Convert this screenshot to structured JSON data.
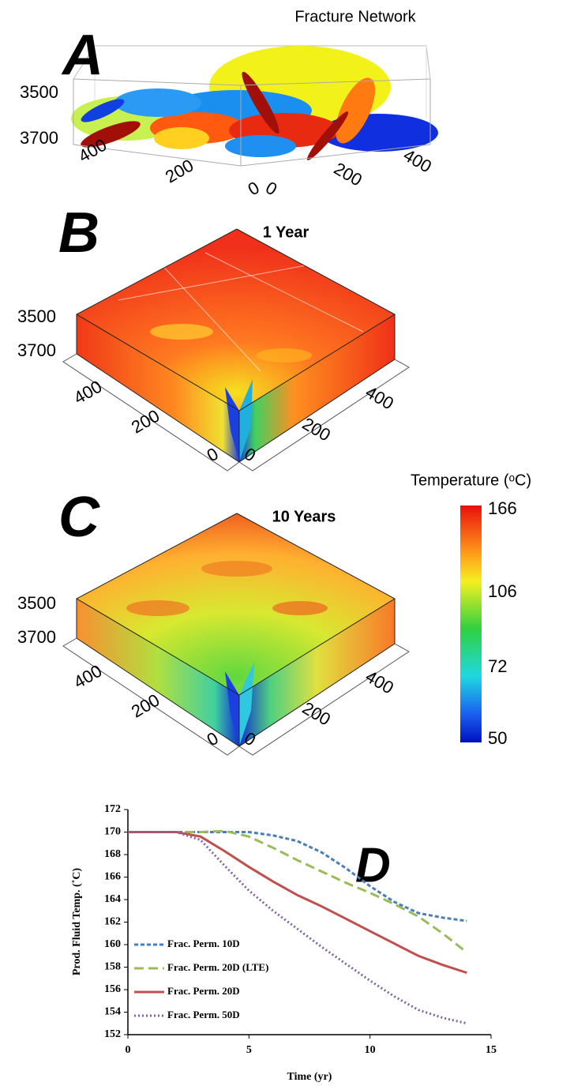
{
  "panels": [
    {
      "label": "A",
      "title": "Fracture Network",
      "depth_ticks": [
        3500,
        3700
      ],
      "x_ticks": [
        400,
        200,
        0
      ],
      "y_ticks": [
        0,
        200,
        400
      ]
    },
    {
      "label": "B",
      "title": "1 Year",
      "depth_ticks": [
        3500,
        3700
      ],
      "x_ticks": [
        400,
        200,
        0
      ],
      "y_ticks": [
        0,
        200,
        400
      ]
    },
    {
      "label": "C",
      "title": "10 Years",
      "depth_ticks": [
        3500,
        3700
      ],
      "x_ticks": [
        400,
        200,
        0
      ],
      "y_ticks": [
        0,
        200,
        400
      ]
    }
  ],
  "colorbar": {
    "title": "Temperature (ᵒC)",
    "ticks": [
      166,
      106,
      72,
      50
    ]
  },
  "chart_data": {
    "type": "line",
    "annotation": "D",
    "xlabel": "Time (yr)",
    "ylabel": "Prod. Fluid Temp. (˚C)",
    "x": [
      0,
      1,
      2,
      3,
      4,
      5,
      6,
      7,
      8,
      9,
      10,
      11,
      12,
      13,
      14
    ],
    "series": [
      {
        "name": "Frac. Perm. 10D",
        "color": "#4a7ebb",
        "dash": "5,3",
        "values": [
          170,
          170,
          170,
          170,
          170,
          170,
          169.7,
          169.2,
          168.2,
          166.8,
          165.2,
          163.8,
          162.8,
          162.4,
          162.1
        ]
      },
      {
        "name": "Frac. Perm. 20D (LTE)",
        "color": "#9bbb59",
        "dash": "12,6",
        "values": [
          170,
          170,
          170,
          170,
          170.1,
          169.6,
          168.6,
          167.5,
          166.5,
          165.5,
          164.6,
          163.6,
          162.5,
          161,
          159.3
        ]
      },
      {
        "name": "Frac. Perm. 20D",
        "color": "#c0504d",
        "dash": "none",
        "values": [
          170,
          170,
          170,
          169.6,
          168.3,
          166.9,
          165.6,
          164.4,
          163.4,
          162.3,
          161.2,
          160.1,
          159,
          158.2,
          157.5
        ]
      },
      {
        "name": "Frac. Perm. 50D",
        "color": "#8064a2",
        "dash": "2,3",
        "values": [
          170,
          170,
          170,
          169.3,
          167,
          164.8,
          163,
          161.4,
          159.8,
          158.3,
          156.8,
          155.4,
          154.2,
          153.5,
          153
        ]
      }
    ],
    "xlim": [
      0,
      15
    ],
    "xticks": [
      0,
      5,
      10,
      15
    ],
    "ylim": [
      152,
      172
    ],
    "yticks": [
      152,
      154,
      156,
      158,
      160,
      162,
      164,
      166,
      168,
      170,
      172
    ]
  }
}
